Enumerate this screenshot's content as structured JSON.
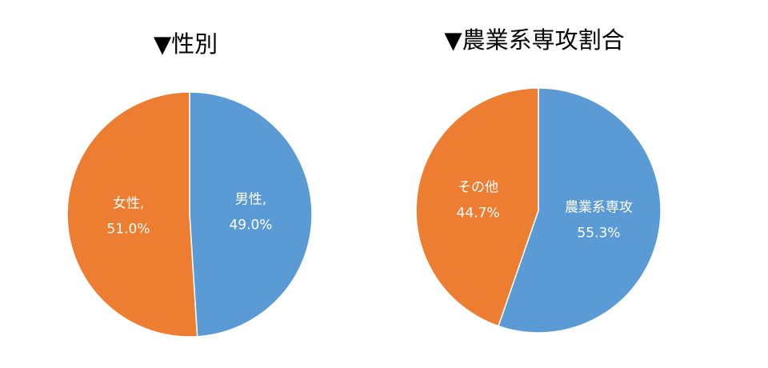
{
  "chart_data": [
    {
      "type": "pie",
      "title": "▼性別",
      "categories": [
        "男性,",
        "女性,"
      ],
      "values": [
        49.0,
        51.0
      ],
      "value_labels": [
        "49.0%",
        "51.0%"
      ],
      "colors": [
        "#5b9bd5",
        "#ed7d31"
      ]
    },
    {
      "type": "pie",
      "title": "▼農業系専攻割合",
      "categories": [
        "農業系専攻",
        "その他"
      ],
      "values": [
        55.3,
        44.7
      ],
      "value_labels": [
        "55.3%",
        "44.7%"
      ],
      "colors": [
        "#5b9bd5",
        "#ed7d31"
      ]
    }
  ]
}
